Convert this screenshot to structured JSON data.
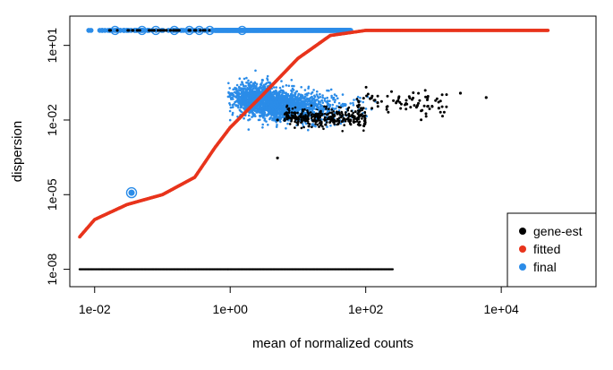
{
  "chart_data": {
    "type": "scatter",
    "xlabel": "mean of normalized counts",
    "ylabel": "dispersion",
    "x_scale": "log",
    "y_scale": "log",
    "xlim": [
      0.0043,
      250000
    ],
    "ylim": [
      2e-09,
      150
    ],
    "x_ticks": [
      0.01,
      1,
      100,
      10000
    ],
    "x_tick_labels": [
      "1e-02",
      "1e+00",
      "1e+02",
      "1e+04"
    ],
    "y_ticks": [
      1e-08,
      1e-05,
      0.01,
      10
    ],
    "y_tick_labels": [
      "1e-08",
      "1e-05",
      "1e-02",
      "1e+01"
    ],
    "legend": {
      "position": "bottom-right",
      "entries": [
        {
          "label": "gene-est",
          "color": "#000000"
        },
        {
          "label": "fitted",
          "color": "#e8341c"
        },
        {
          "label": "final",
          "color": "#2b8ce8"
        }
      ]
    },
    "series": [
      {
        "name": "gene-est",
        "color": "#000000",
        "points": [
          [
            0.006,
            1e-08
          ],
          [
            0.02,
            1e-08
          ],
          [
            0.1,
            1e-08
          ],
          [
            1,
            1e-08
          ],
          [
            10,
            1e-08
          ],
          [
            100,
            1e-08
          ],
          [
            250,
            1e-08
          ],
          [
            0.016,
            40
          ],
          [
            0.05,
            40
          ],
          [
            0.1,
            40
          ],
          [
            0.2,
            40
          ],
          [
            0.3,
            40
          ],
          [
            0.5,
            40
          ],
          [
            5,
            0.01
          ],
          [
            10,
            0.008
          ],
          [
            20,
            0.012
          ],
          [
            40,
            0.02
          ],
          [
            80,
            0.04
          ],
          [
            150,
            0.05
          ],
          [
            300,
            0.06
          ],
          [
            1200,
            0.03
          ],
          [
            2500,
            0.12
          ],
          [
            6000,
            0.08
          ],
          [
            5,
            0.0003
          ]
        ]
      },
      {
        "name": "fitted",
        "color": "#e8341c",
        "points": [
          [
            0.006,
            2e-07
          ],
          [
            0.01,
            1e-06
          ],
          [
            0.03,
            4e-06
          ],
          [
            0.1,
            1e-05
          ],
          [
            0.3,
            5e-05
          ],
          [
            0.6,
            0.0008
          ],
          [
            1,
            0.005
          ],
          [
            3,
            0.1
          ],
          [
            10,
            3
          ],
          [
            30,
            25
          ],
          [
            100,
            40
          ],
          [
            1000,
            40
          ],
          [
            10000,
            40
          ],
          [
            50000,
            40
          ]
        ]
      },
      {
        "name": "final",
        "color": "#2b8ce8",
        "points": [
          [
            0.008,
            40
          ],
          [
            0.05,
            40
          ],
          [
            0.5,
            40
          ],
          [
            5,
            40
          ],
          [
            60,
            40
          ],
          [
            0.035,
            1.2e-05
          ],
          [
            1,
            0.1
          ],
          [
            2,
            0.08
          ],
          [
            3,
            0.4
          ],
          [
            5,
            0.05
          ],
          [
            20,
            0.03
          ],
          [
            50,
            0.04
          ]
        ]
      }
    ]
  }
}
